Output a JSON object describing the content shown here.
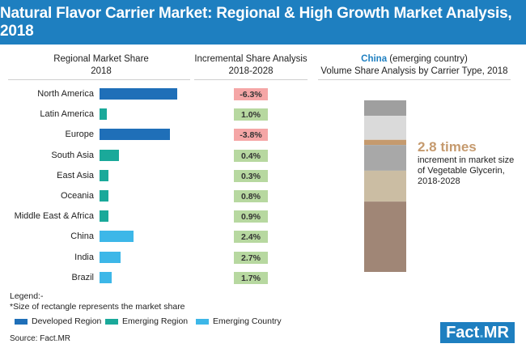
{
  "title": "Natural Flavor Carrier Market: Regional & High Growth Market Analysis, 2018",
  "left_header": {
    "line1": "Regional Market Share",
    "line2": "2018"
  },
  "mid_header": {
    "line1": "Incremental Share Analysis",
    "line2": "2018-2028"
  },
  "right_header": {
    "bold": "China",
    "rest": " (emerging country)",
    "line2": "Volume Share Analysis by Carrier Type, 2018"
  },
  "colors": {
    "developed": "#1f6fb8",
    "emerging_region": "#1aa99a",
    "emerging_country": "#3db7e8",
    "negative": "#f5a6a6",
    "positive": "#b7d8a0",
    "accent": "#c59a6e"
  },
  "chart_data": [
    {
      "type": "bar",
      "orientation": "horizontal",
      "title": "Regional Market Share 2018",
      "note": "*Size of rectangle represents the market share",
      "categories": [
        "North America",
        "Latin America",
        "Europe",
        "South Asia",
        "East Asia",
        "Oceania",
        "Middle East & Africa",
        "China",
        "India",
        "Brazil"
      ],
      "values": [
        32,
        3,
        29,
        8,
        3.5,
        3.5,
        3.5,
        14,
        8.5,
        5
      ],
      "groups": [
        "developed",
        "emerging_region",
        "developed",
        "emerging_region",
        "emerging_region",
        "emerging_region",
        "emerging_region",
        "emerging_country",
        "emerging_country",
        "emerging_country"
      ],
      "xlim": [
        0,
        35
      ]
    },
    {
      "type": "table",
      "title": "Incremental Share Analysis 2018-2028",
      "categories": [
        "North America",
        "Latin America",
        "Europe",
        "South Asia",
        "East Asia",
        "Oceania",
        "Middle East & Africa",
        "China",
        "India",
        "Brazil"
      ],
      "labels": [
        "-6.3%",
        "1.0%",
        "-3.8%",
        "0.4%",
        "0.3%",
        "0.8%",
        "0.9%",
        "2.4%",
        "2.7%",
        "1.7%"
      ],
      "values": [
        -6.3,
        1.0,
        -3.8,
        0.4,
        0.3,
        0.8,
        0.9,
        2.4,
        2.7,
        1.7
      ]
    },
    {
      "type": "bar",
      "stacked": true,
      "title": "China (emerging country) Volume Share Analysis by Carrier Type, 2018",
      "segments": [
        {
          "value": 9,
          "color": "#9f9f9f"
        },
        {
          "value": 14,
          "color": "#dadada"
        },
        {
          "value": 3,
          "color": "#c59a6e",
          "highlight": true
        },
        {
          "value": 15,
          "color": "#a8a8a8"
        },
        {
          "value": 18,
          "color": "#cbbda3"
        },
        {
          "value": 41,
          "color": "#a08676"
        }
      ],
      "annotation": {
        "value": "2.8 times",
        "text": "increment in market size of Vegetable Glycerin, 2018-2028"
      }
    }
  ],
  "legend": {
    "title": "Legend:-",
    "note": "*Size of rectangle represents the market share",
    "items": [
      {
        "label": "Developed Region",
        "color": "#1f6fb8"
      },
      {
        "label": "Emerging Region",
        "color": "#1aa99a"
      },
      {
        "label": "Emerging Country",
        "color": "#3db7e8"
      }
    ]
  },
  "source": "Source: Fact.MR",
  "logo": {
    "left": "Fact",
    "dot": ".",
    "right": "MR"
  }
}
